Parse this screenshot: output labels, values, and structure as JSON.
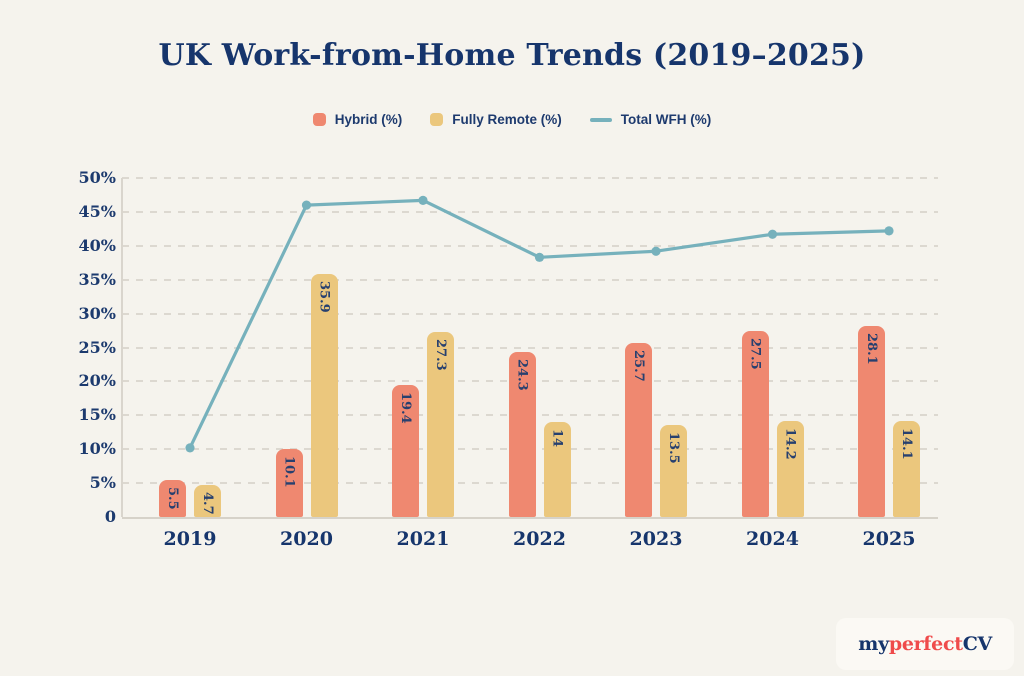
{
  "title": "UK Work-from-Home Trends (2019–2025)",
  "legend": [
    {
      "label": "Hybrid (%)",
      "swatch": "square",
      "color": "#EF8870"
    },
    {
      "label": "Fully Remote (%)",
      "swatch": "square",
      "color": "#EBC77D"
    },
    {
      "label": "Total WFH (%)",
      "swatch": "line",
      "color": "#76B1BC"
    }
  ],
  "chart_data": {
    "type": "bar+line",
    "title": "UK Work-from-Home Trends (2019–2025)",
    "categories": [
      "2019",
      "2020",
      "2021",
      "2022",
      "2023",
      "2024",
      "2025"
    ],
    "series": [
      {
        "name": "Hybrid (%)",
        "type": "bar",
        "color": "#EF8870",
        "values": [
          5.5,
          10.1,
          19.4,
          24.3,
          25.7,
          27.5,
          28.1
        ],
        "labels": [
          "5.5",
          "10.1",
          "19.4",
          "24.3",
          "25.7",
          "27.5",
          "28.1"
        ]
      },
      {
        "name": "Fully Remote (%)",
        "type": "bar",
        "color": "#EBC77D",
        "values": [
          4.7,
          35.9,
          27.3,
          14,
          13.5,
          14.2,
          14.1
        ],
        "labels": [
          "4.7",
          "35.9",
          "27.3",
          "14",
          "13.5",
          "14.2",
          "14.1"
        ]
      },
      {
        "name": "Total WFH (%)",
        "type": "line",
        "color": "#76B1BC",
        "values": [
          10.2,
          46,
          46.7,
          38.3,
          39.2,
          41.7,
          42.2
        ]
      }
    ],
    "ylim": [
      0,
      50
    ],
    "ytick_step": 5,
    "ytick_labels": [
      "50%",
      "45%",
      "40%",
      "35%",
      "30%",
      "25%",
      "20%",
      "15%",
      "10%",
      "5%",
      "0"
    ],
    "grid": "horizontal-dashed",
    "legend_position": "top"
  },
  "colors": {
    "background": "#F5F3ED",
    "navy": "#16356C",
    "bar_label": "#27406F",
    "gridline": "#DCD8D0",
    "brand_red": "#EF4B4B"
  },
  "branding": {
    "part1": "my",
    "part2": "perfect",
    "part3": "CV"
  }
}
